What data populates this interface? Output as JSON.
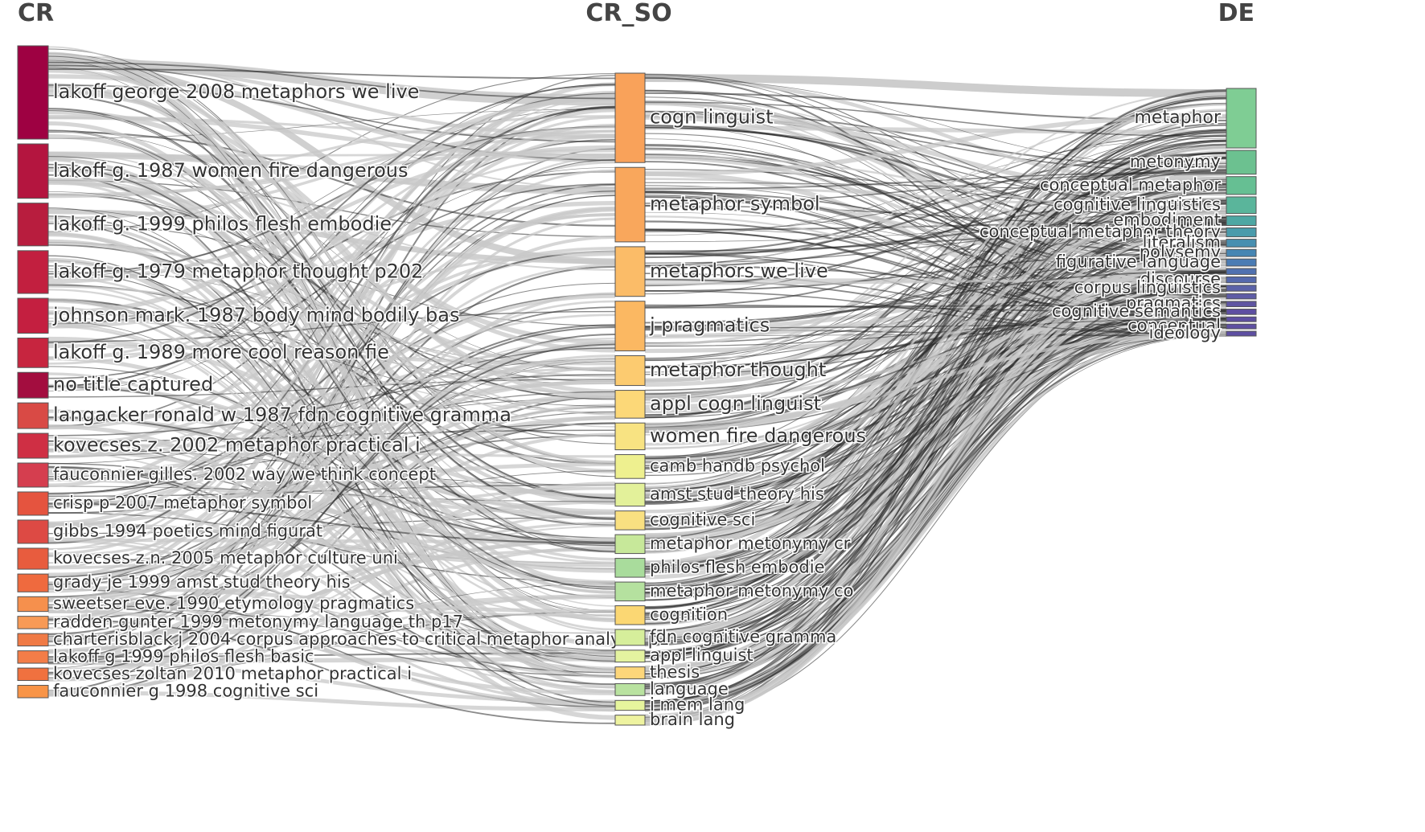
{
  "chart_data": {
    "type": "sankey",
    "columns": [
      {
        "title": "CR",
        "nodes": [
          {
            "label": "lakoff george 2008 metaphors we live",
            "color": "#9e0142",
            "value": 12
          },
          {
            "label": "lakoff g. 1987 women fire dangerous",
            "color": "#b4153f",
            "value": 7
          },
          {
            "label": "lakoff g. 1999 philos flesh embodie",
            "color": "#b81d3e",
            "value": 5.5
          },
          {
            "label": "lakoff g. 1979 metaphor thought p202",
            "color": "#c21f3f",
            "value": 5.5
          },
          {
            "label": "johnson mark. 1987 body mind bodily bas",
            "color": "#c41f40",
            "value": 4.5
          },
          {
            "label": "lakoff g. 1989 more cool reason fie",
            "color": "#c7253f",
            "value": 3.8
          },
          {
            "label": "no title captured",
            "color": "#a30d3f",
            "value": 3.3
          },
          {
            "label": "langacker ronald w 1987 fdn cognitive gramma",
            "color": "#d94a45",
            "value": 3.3
          },
          {
            "label": "kovecses z. 2002 metaphor practical i",
            "color": "#cf2f44",
            "value": 3.2
          },
          {
            "label": "fauconnier gilles. 2002 way we think concept",
            "color": "#d53e4f",
            "value": 3.1
          },
          {
            "label": "crisp p 2007 metaphor symbol",
            "color": "#e5543f",
            "value": 3.0
          },
          {
            "label": "gibbs 1994 poetics mind figurat",
            "color": "#dd4a44",
            "value": 3.0
          },
          {
            "label": "kovecses z.n. 2005 metaphor culture uni",
            "color": "#e85c3e",
            "value": 2.7
          },
          {
            "label": "grady je 1999 amst stud theory his",
            "color": "#ef6a3e",
            "value": 2.3
          },
          {
            "label": "sweetser eve. 1990 etymology pragmatics",
            "color": "#f6904d",
            "value": 1.9
          },
          {
            "label": "radden gunter 1999 metonymy language th p17",
            "color": "#f89a56",
            "value": 1.6
          },
          {
            "label": "charterisblack j 2004 corpus approaches to critical metaphor analysis p1",
            "color": "#f07a45",
            "value": 1.6
          },
          {
            "label": "lakoff g 1999 philos flesh basic",
            "color": "#f37d48",
            "value": 1.6
          },
          {
            "label": "kovecses zoltan 2010 metaphor practical i",
            "color": "#f0713f",
            "value": 1.6
          },
          {
            "label": "fauconnier g 1998 cognitive sci",
            "color": "#f89447",
            "value": 1.6
          }
        ]
      },
      {
        "title": "CR_SO",
        "nodes": [
          {
            "label": "cogn linguist",
            "color": "#f9a25a",
            "value": 9
          },
          {
            "label": "metaphor symbol",
            "color": "#f9a75c",
            "value": 7.5
          },
          {
            "label": "metaphors we live",
            "color": "#fbbc68",
            "value": 5
          },
          {
            "label": "j pragmatics",
            "color": "#fbb862",
            "value": 5
          },
          {
            "label": "metaphor thought",
            "color": "#fccb70",
            "value": 3
          },
          {
            "label": "appl cogn linguist",
            "color": "#fcd878",
            "value": 2.8
          },
          {
            "label": "women fire dangerous",
            "color": "#f8e382",
            "value": 2.7
          },
          {
            "label": "camb handb psychol",
            "color": "#eef08f",
            "value": 2.4
          },
          {
            "label": "amst stud theory his",
            "color": "#e3f19a",
            "value": 2.3
          },
          {
            "label": "cognitive sci",
            "color": "#f9e081",
            "value": 1.9
          },
          {
            "label": "metaphor metonymy cr",
            "color": "#c7e89a",
            "value": 1.9
          },
          {
            "label": "philos flesh embodie",
            "color": "#a9dc9c",
            "value": 1.9
          },
          {
            "label": "metaphor metonymy co",
            "color": "#b5e19f",
            "value": 1.9
          },
          {
            "label": "cognition",
            "color": "#fbd773",
            "value": 1.9
          },
          {
            "label": "fdn cognitive gramma",
            "color": "#d6ee9b",
            "value": 1.6
          },
          {
            "label": "appl linguist",
            "color": "#e4f3a0",
            "value": 1.2
          },
          {
            "label": "thesis",
            "color": "#fdd67a",
            "value": 1.2
          },
          {
            "label": "language",
            "color": "#b9e2a0",
            "value": 1.2
          },
          {
            "label": "j mem lang",
            "color": "#e6f59d",
            "value": 1.0
          },
          {
            "label": "brain lang",
            "color": "#eef3a0",
            "value": 1.0
          }
        ]
      },
      {
        "title": "DE",
        "nodes": [
          {
            "label": "metaphor",
            "color": "#7fcd94",
            "value": 10
          },
          {
            "label": "metonymy",
            "color": "#6cc190",
            "value": 4
          },
          {
            "label": "conceptual metaphor",
            "color": "#66bf93",
            "value": 3
          },
          {
            "label": "cognitive linguistics",
            "color": "#5ab59b",
            "value": 2.8
          },
          {
            "label": "embodiment",
            "color": "#4ea7a3",
            "value": 1.6
          },
          {
            "label": "conceptual metaphor theory",
            "color": "#4a9bab",
            "value": 1.5
          },
          {
            "label": "literalism",
            "color": "#488fb0",
            "value": 1.3
          },
          {
            "label": "polysemy",
            "color": "#4686b3",
            "value": 1.2
          },
          {
            "label": "figurative language",
            "color": "#4a7cb4",
            "value": 1.2
          },
          {
            "label": "",
            "color": "#5071b0",
            "value": 1.0
          },
          {
            "label": "discourse",
            "color": "#5569ad",
            "value": 1.0
          },
          {
            "label": "corpus linguistics",
            "color": "#5b62a8",
            "value": 1.0
          },
          {
            "label": "",
            "color": "#5e5ca6",
            "value": 0.9
          },
          {
            "label": "pragmatics",
            "color": "#5f55a2",
            "value": 0.9
          },
          {
            "label": "cognitive semantics",
            "color": "#5e4fa2",
            "value": 0.9
          },
          {
            "label": "",
            "color": "#5e4fa2",
            "value": 0.8
          },
          {
            "label": "conceptual",
            "color": "#5e4fa2",
            "value": 0.8
          },
          {
            "label": "ideology",
            "color": "#5e4fa2",
            "value": 0.8
          }
        ]
      }
    ],
    "link_color_light": "#c8c8c8",
    "link_color_dark": "#2a2a2a"
  }
}
